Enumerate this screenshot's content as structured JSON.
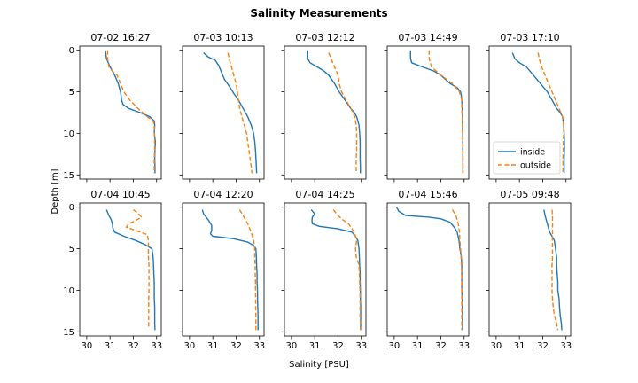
{
  "chart_data": {
    "type": "line",
    "title": "Salinity Measurements",
    "xlabel": "Salinity [PSU]",
    "ylabel": "Depth [m]",
    "xlim": [
      29.7,
      33.2
    ],
    "ylim": [
      15.5,
      -0.5
    ],
    "xticks": [
      "30",
      "31",
      "32",
      "33"
    ],
    "yticks": [
      "0",
      "5",
      "10",
      "15"
    ],
    "grid": false,
    "legend": {
      "location": "lower-right",
      "in_panel": 4,
      "entries": [
        "inside",
        "outside"
      ]
    },
    "colors": {
      "inside": "#1f77b4",
      "outside": "#ff7f0e"
    },
    "panels": [
      {
        "title": "07-02 16:27",
        "series": [
          {
            "name": "inside",
            "depth": [
              0,
              1,
              2,
              3,
              4,
              5,
              6,
              6.5,
              7,
              7.5,
              8,
              8.5,
              9,
              10,
              11,
              12,
              13,
              14,
              14.8
            ],
            "salinity": [
              30.8,
              30.85,
              31.0,
              31.2,
              31.35,
              31.45,
              31.5,
              31.55,
              31.8,
              32.3,
              32.7,
              32.9,
              32.92,
              32.9,
              32.95,
              32.93,
              32.92,
              32.93,
              32.93
            ]
          },
          {
            "name": "outside",
            "depth": [
              0,
              1,
              2,
              2.5,
              3,
              4,
              5,
              6,
              7,
              8,
              8.5,
              9,
              10,
              11,
              12,
              13,
              14,
              14.8
            ],
            "salinity": [
              30.9,
              30.9,
              30.95,
              31.1,
              31.3,
              31.45,
              31.6,
              31.85,
              32.2,
              32.6,
              32.85,
              32.9,
              32.9,
              32.92,
              32.92,
              32.9,
              32.9,
              32.9
            ]
          }
        ]
      },
      {
        "title": "07-03 10:13",
        "series": [
          {
            "name": "inside",
            "depth": [
              0.3,
              0.8,
              1.2,
              1.8,
              2.5,
              3.5,
              4.5,
              5.2,
              6,
              7,
              8,
              9,
              10,
              11,
              12,
              13,
              14,
              14.8
            ],
            "salinity": [
              30.6,
              30.8,
              31.1,
              31.25,
              31.35,
              31.5,
              31.75,
              31.9,
              32.1,
              32.3,
              32.5,
              32.65,
              32.75,
              32.8,
              32.83,
              32.85,
              32.87,
              32.88
            ]
          },
          {
            "name": "outside",
            "depth": [
              0.3,
              1,
              2,
              3,
              4,
              5,
              6,
              7,
              8,
              9,
              10,
              11,
              12,
              13,
              14,
              14.8
            ],
            "salinity": [
              31.65,
              31.7,
              31.8,
              31.9,
              32.0,
              32.05,
              32.1,
              32.15,
              32.25,
              32.35,
              32.45,
              32.5,
              32.55,
              32.6,
              32.65,
              32.68
            ]
          }
        ]
      },
      {
        "title": "07-03 12:12",
        "series": [
          {
            "name": "inside",
            "depth": [
              0,
              1,
              1.5,
              2,
              2.5,
              3,
              4,
              5,
              6,
              7,
              7.5,
              8,
              9,
              10,
              11,
              12,
              13,
              14,
              14.8
            ],
            "salinity": [
              30.7,
              30.7,
              30.8,
              31.1,
              31.4,
              31.6,
              31.85,
              32.05,
              32.3,
              32.55,
              32.7,
              32.8,
              32.9,
              32.93,
              32.95,
              32.95,
              32.95,
              32.96,
              32.96
            ]
          },
          {
            "name": "outside",
            "depth": [
              0.3,
              1,
              2,
              3,
              4,
              5,
              6,
              7,
              8,
              9,
              10,
              11,
              12,
              13,
              14,
              14.8
            ],
            "salinity": [
              31.6,
              31.7,
              31.85,
              32.0,
              32.05,
              32.15,
              32.35,
              32.55,
              32.72,
              32.78,
              32.8,
              32.8,
              32.8,
              32.78,
              32.78,
              32.78
            ]
          }
        ]
      },
      {
        "title": "07-03 14:49",
        "series": [
          {
            "name": "inside",
            "depth": [
              0,
              1,
              1.5,
              2,
              2.5,
              3,
              4,
              4.5,
              5,
              5.5,
              6,
              7,
              8,
              9,
              10,
              11,
              12,
              13,
              14,
              14.8
            ],
            "salinity": [
              30.7,
              30.7,
              30.75,
              31.2,
              31.7,
              32.0,
              32.4,
              32.7,
              32.85,
              32.88,
              32.9,
              32.92,
              32.93,
              32.93,
              32.94,
              32.94,
              32.94,
              32.95,
              32.95,
              32.95
            ]
          },
          {
            "name": "outside",
            "depth": [
              0,
              1,
              2,
              3,
              4,
              5,
              6,
              7,
              8,
              9,
              10,
              11,
              12,
              13,
              14,
              14.8
            ],
            "salinity": [
              31.5,
              31.5,
              31.6,
              32.0,
              32.5,
              32.8,
              32.9,
              32.9,
              32.92,
              32.93,
              32.93,
              32.94,
              32.94,
              32.94,
              32.95,
              32.95
            ]
          }
        ]
      },
      {
        "title": "07-03 17:10",
        "series": [
          {
            "name": "inside",
            "depth": [
              0.3,
              1,
              1.5,
              2,
              3,
              4,
              4.5,
              5,
              6,
              7,
              7.5,
              8,
              9,
              10,
              11,
              12,
              13,
              14,
              14.8
            ],
            "salinity": [
              30.7,
              30.8,
              31.0,
              31.3,
              31.6,
              31.9,
              32.05,
              32.2,
              32.4,
              32.6,
              32.75,
              32.85,
              32.9,
              32.92,
              32.93,
              32.93,
              32.92,
              32.92,
              32.92
            ]
          },
          {
            "name": "outside",
            "depth": [
              0.3,
              1,
              2,
              3,
              4,
              5,
              6,
              7,
              8,
              8.5,
              9,
              10,
              11,
              12,
              13,
              14,
              14.8
            ],
            "salinity": [
              31.8,
              31.85,
              31.95,
              32.1,
              32.25,
              32.4,
              32.55,
              32.7,
              32.85,
              32.88,
              32.9,
              32.9,
              32.88,
              32.88,
              32.87,
              32.87,
              32.87
            ]
          }
        ]
      },
      {
        "title": "07-04 10:45",
        "series": [
          {
            "name": "inside",
            "depth": [
              0.3,
              1,
              1.5,
              2,
              2.5,
              3,
              3.5,
              4,
              4.5,
              5,
              6,
              7,
              8,
              9,
              10,
              11,
              12,
              13,
              14,
              14.8
            ],
            "salinity": [
              30.85,
              30.95,
              31.05,
              31.1,
              31.12,
              31.2,
              31.6,
              32.1,
              32.5,
              32.8,
              32.85,
              32.87,
              32.88,
              32.9,
              32.9,
              32.9,
              32.92,
              32.92,
              32.92,
              32.93
            ]
          },
          {
            "name": "outside",
            "depth": [
              0.3,
              0.7,
              1.2,
              1.6,
              2.0,
              2.4,
              2.8,
              3.3,
              4,
              5,
              6,
              7,
              8,
              9,
              10,
              11,
              12,
              13,
              14,
              14.6
            ],
            "salinity": [
              32.0,
              32.2,
              32.35,
              32.1,
              31.8,
              31.7,
              32.1,
              32.6,
              32.65,
              32.65,
              32.65,
              32.67,
              32.67,
              32.67,
              32.67,
              32.66,
              32.66,
              32.66,
              32.66,
              32.66
            ]
          }
        ]
      },
      {
        "title": "07-04 12:20",
        "series": [
          {
            "name": "inside",
            "depth": [
              0.3,
              0.8,
              1.5,
              2.2,
              2.8,
              3.2,
              3.5,
              3.8,
              4.2,
              4.6,
              5,
              6,
              7,
              8,
              9,
              10,
              11,
              12,
              13,
              14,
              14.8
            ],
            "salinity": [
              30.55,
              30.6,
              30.8,
              30.95,
              30.95,
              30.9,
              31.0,
              31.9,
              32.5,
              32.75,
              32.85,
              32.87,
              32.88,
              32.9,
              32.9,
              32.92,
              32.92,
              32.93,
              32.94,
              32.94,
              32.94
            ]
          },
          {
            "name": "outside",
            "depth": [
              0.3,
              1,
              2,
              3,
              4,
              5,
              6,
              7,
              8,
              9,
              10,
              11,
              12,
              13,
              14,
              14.8
            ],
            "salinity": [
              32.15,
              32.3,
              32.5,
              32.65,
              32.75,
              32.8,
              32.8,
              32.82,
              32.82,
              32.83,
              32.83,
              32.84,
              32.84,
              32.85,
              32.85,
              32.85
            ]
          }
        ]
      },
      {
        "title": "07-04 14:25",
        "series": [
          {
            "name": "inside",
            "depth": [
              0.3,
              0.8,
              1.2,
              1.6,
              2.0,
              2.3,
              2.6,
              3.0,
              3.5,
              4,
              5,
              6,
              7,
              8,
              9,
              10,
              11,
              12,
              13,
              14,
              14.8
            ],
            "salinity": [
              30.85,
              31.0,
              30.9,
              30.88,
              30.9,
              31.2,
              32.0,
              32.6,
              32.75,
              32.85,
              32.9,
              32.92,
              32.93,
              32.95,
              32.95,
              32.96,
              32.96,
              32.97,
              32.97,
              32.97,
              32.97
            ]
          },
          {
            "name": "outside",
            "depth": [
              0.3,
              1,
              1.5,
              2,
              3,
              4,
              5,
              6,
              6.5,
              7,
              8,
              9,
              10,
              11,
              12,
              13,
              14,
              14.8
            ],
            "salinity": [
              31.8,
              32.0,
              32.2,
              32.45,
              32.7,
              32.8,
              32.75,
              32.78,
              32.85,
              32.9,
              32.92,
              32.93,
              32.94,
              32.95,
              32.95,
              32.95,
              32.96,
              32.96
            ]
          }
        ]
      },
      {
        "title": "07-04 15:46",
        "series": [
          {
            "name": "inside",
            "depth": [
              0,
              0.5,
              1.0,
              1.2,
              1.4,
              1.8,
              2.5,
              3,
              4,
              5,
              6,
              7,
              8,
              9,
              10,
              11,
              12,
              13,
              14,
              14.8
            ],
            "salinity": [
              30.1,
              30.2,
              30.5,
              31.5,
              32.0,
              32.4,
              32.6,
              32.7,
              32.78,
              32.82,
              32.88,
              32.9,
              32.9,
              32.9,
              32.9,
              32.92,
              32.92,
              32.93,
              32.93,
              32.93
            ]
          },
          {
            "name": "outside",
            "depth": [
              0.3,
              1,
              2,
              3,
              4,
              5,
              6,
              7,
              8,
              9,
              10,
              11,
              12,
              13,
              14,
              14.8
            ],
            "salinity": [
              32.5,
              32.65,
              32.75,
              32.8,
              32.82,
              32.85,
              32.87,
              32.88,
              32.9,
              32.9,
              32.9,
              32.9,
              32.9,
              32.9,
              32.9,
              32.9
            ]
          }
        ]
      },
      {
        "title": "07-05 09:48",
        "series": [
          {
            "name": "inside",
            "depth": [
              0.3,
              1,
              2,
              3,
              3.5,
              4,
              5,
              6,
              7,
              8,
              9,
              10,
              11,
              12,
              13,
              14,
              14.8
            ],
            "salinity": [
              32.05,
              32.1,
              32.2,
              32.3,
              32.4,
              32.5,
              32.55,
              32.6,
              32.6,
              32.62,
              32.65,
              32.65,
              32.7,
              32.72,
              32.75,
              32.8,
              32.82
            ]
          },
          {
            "name": "outside",
            "depth": [
              0.3,
              1,
              2,
              3,
              4,
              5,
              6,
              7,
              8,
              9,
              10,
              11,
              12,
              13,
              14,
              14.8
            ],
            "salinity": [
              32.4,
              32.42,
              32.42,
              32.42,
              32.42,
              32.42,
              32.42,
              32.4,
              32.4,
              32.4,
              32.4,
              32.42,
              32.45,
              32.5,
              32.6,
              32.65
            ]
          }
        ]
      }
    ]
  }
}
